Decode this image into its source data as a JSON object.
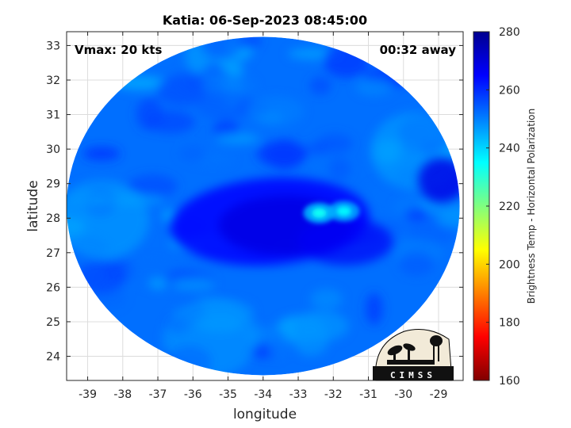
{
  "chart_data": {
    "type": "heatmap",
    "title": "Katia: 06-Sep-2023 08:45:00",
    "xlabel": "longitude",
    "ylabel": "latitude",
    "xlim": [
      -39.6,
      -28.3
    ],
    "ylim": [
      23.3,
      33.4
    ],
    "xticks": [
      -39,
      -38,
      -37,
      -36,
      -35,
      -34,
      -33,
      -32,
      -31,
      -30,
      -29
    ],
    "yticks": [
      24,
      25,
      26,
      27,
      28,
      29,
      30,
      31,
      32,
      33
    ],
    "grid": true,
    "annotations": {
      "vmax": "Vmax: 20 kts",
      "time_away": "00:32 away"
    },
    "colorbar": {
      "label": "Brightness Temp - Horizontal Polarization",
      "range": [
        160,
        280
      ],
      "ticks": [
        160,
        180,
        200,
        220,
        240,
        260,
        280
      ],
      "colormap": "jet"
    },
    "field": {
      "center": [
        -34.0,
        28.35
      ],
      "radius_lon": 5.6,
      "radius_lat": 4.9,
      "background_value": 252,
      "core_center": [
        -33.8,
        27.9
      ],
      "core_value": 268,
      "warm_patches": [
        {
          "center": [
            -31.7,
            28.2
          ],
          "value": 236
        },
        {
          "center": [
            -32.4,
            28.15
          ],
          "value": 234
        }
      ]
    },
    "logo_text": "CIMSS"
  }
}
